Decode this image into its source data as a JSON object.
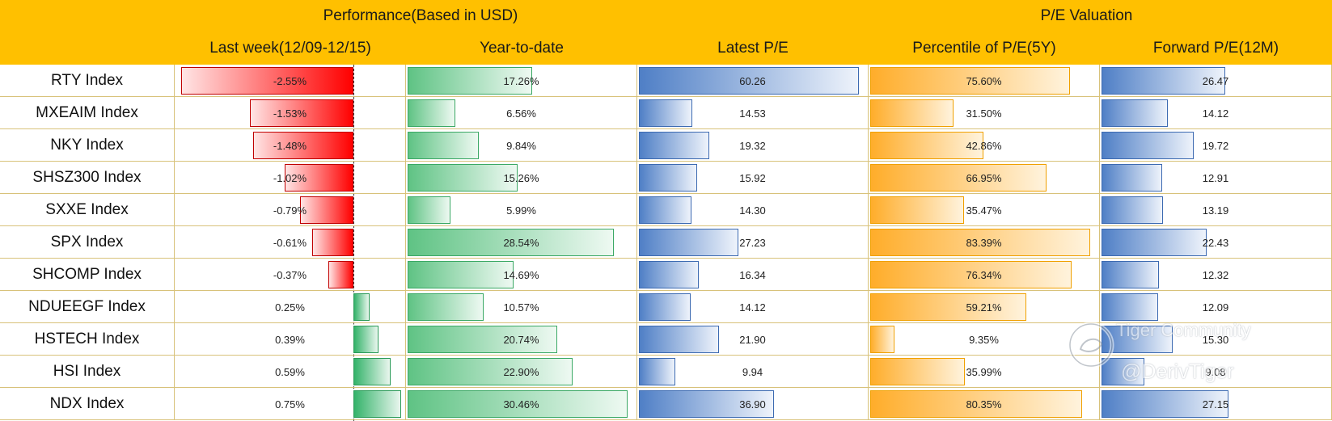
{
  "header": {
    "group_performance": "Performance(Based in USD)",
    "group_pe": "P/E Valuation",
    "col_last_week": "Last week(12/09-12/15)",
    "col_ytd": "Year-to-date",
    "col_latest_pe": "Latest P/E",
    "col_percentile": "Percentile of P/E(5Y)",
    "col_forward_pe": "Forward P/E(12M)"
  },
  "colors": {
    "header_bg": "#ffc000",
    "negative": "#ff0000",
    "positive": "#34b36a",
    "pe": "#4f7fc6",
    "percentile": "#ffad2a"
  },
  "watermark": {
    "line1": "Tiger Community",
    "line2": "@DerivTiger"
  },
  "chart_data": {
    "type": "table",
    "columns": [
      "Last week(12/09-12/15)",
      "Year-to-date",
      "Latest P/E",
      "Percentile of P/E(5Y)",
      "Forward P/E(12M)"
    ],
    "rows": [
      {
        "index": "RTY Index",
        "last_week": "-2.55%",
        "ytd": "17.26%",
        "latest_pe": "60.26",
        "percentile": "75.60%",
        "forward_pe": "26.47"
      },
      {
        "index": "MXEAIM Index",
        "last_week": "-1.53%",
        "ytd": "6.56%",
        "latest_pe": "14.53",
        "percentile": "31.50%",
        "forward_pe": "14.12"
      },
      {
        "index": "NKY Index",
        "last_week": "-1.48%",
        "ytd": "9.84%",
        "latest_pe": "19.32",
        "percentile": "42.86%",
        "forward_pe": "19.72"
      },
      {
        "index": "SHSZ300 Index",
        "last_week": "-1.02%",
        "ytd": "15.26%",
        "latest_pe": "15.92",
        "percentile": "66.95%",
        "forward_pe": "12.91"
      },
      {
        "index": "SXXE Index",
        "last_week": "-0.79%",
        "ytd": "5.99%",
        "latest_pe": "14.30",
        "percentile": "35.47%",
        "forward_pe": "13.19"
      },
      {
        "index": "SPX Index",
        "last_week": "-0.61%",
        "ytd": "28.54%",
        "latest_pe": "27.23",
        "percentile": "83.39%",
        "forward_pe": "22.43"
      },
      {
        "index": "SHCOMP Index",
        "last_week": "-0.37%",
        "ytd": "14.69%",
        "latest_pe": "16.34",
        "percentile": "76.34%",
        "forward_pe": "12.32"
      },
      {
        "index": "NDUEEGF Index",
        "last_week": "0.25%",
        "ytd": "10.57%",
        "latest_pe": "14.12",
        "percentile": "59.21%",
        "forward_pe": "12.09"
      },
      {
        "index": "HSTECH Index",
        "last_week": "0.39%",
        "ytd": "20.74%",
        "latest_pe": "21.90",
        "percentile": "9.35%",
        "forward_pe": "15.30"
      },
      {
        "index": "HSI Index",
        "last_week": "0.59%",
        "ytd": "22.90%",
        "latest_pe": "9.94",
        "percentile": "35.99%",
        "forward_pe": "9.08"
      },
      {
        "index": "NDX Index",
        "last_week": "0.75%",
        "ytd": "30.46%",
        "latest_pe": "36.90",
        "percentile": "80.35%",
        "forward_pe": "27.15"
      }
    ]
  }
}
